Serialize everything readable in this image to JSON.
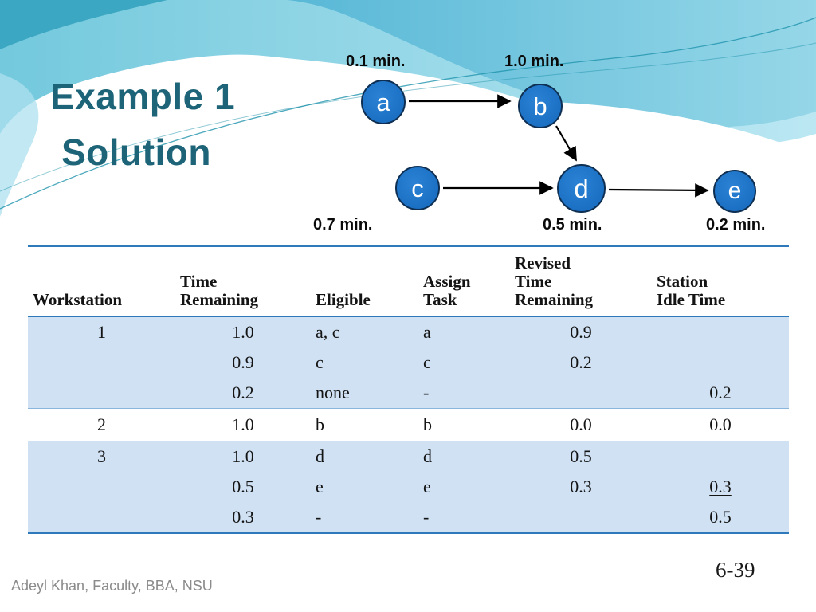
{
  "slide": {
    "title": {
      "line1": "Example 1",
      "line2": "Solution"
    },
    "footer": {
      "credit": "Adeyl Khan, Faculty, BBA, NSU",
      "page": "6-39"
    }
  },
  "diagram": {
    "nodes": [
      {
        "id": "a",
        "label": "a",
        "time": "0.1 min."
      },
      {
        "id": "b",
        "label": "b",
        "time": "1.0 min."
      },
      {
        "id": "c",
        "label": "c",
        "time": "0.7 min."
      },
      {
        "id": "d",
        "label": "d",
        "time": "0.5 min."
      },
      {
        "id": "e",
        "label": "e",
        "time": "0.2 min."
      }
    ],
    "edges": [
      {
        "from": "a",
        "to": "b"
      },
      {
        "from": "b",
        "to": "d"
      },
      {
        "from": "c",
        "to": "d"
      },
      {
        "from": "d",
        "to": "e"
      }
    ]
  },
  "table": {
    "headers": [
      "Workstation",
      "Time\nRemaining",
      "Eligible",
      "Assign\nTask",
      "Revised\nTime\nRemaining",
      "Station\nIdle Time"
    ],
    "groups": [
      {
        "shaded": true,
        "rows": [
          {
            "cells": [
              "1",
              "1.0",
              "a, c",
              "a",
              "0.9",
              ""
            ]
          },
          {
            "cells": [
              "",
              "0.9",
              "c",
              "c",
              "0.2",
              ""
            ]
          },
          {
            "cells": [
              "",
              "0.2",
              "none",
              "-",
              "",
              "0.2"
            ]
          }
        ]
      },
      {
        "shaded": false,
        "rows": [
          {
            "cells": [
              "2",
              "1.0",
              "b",
              "b",
              "0.0",
              "0.0"
            ]
          }
        ]
      },
      {
        "shaded": true,
        "rows": [
          {
            "cells": [
              "3",
              "1.0",
              "d",
              "d",
              "0.5",
              ""
            ]
          },
          {
            "cells": [
              "",
              "0.5",
              "e",
              "e",
              "0.3",
              "0.3"
            ],
            "underline": [
              5
            ]
          },
          {
            "cells": [
              "",
              "0.3",
              "-",
              "-",
              "",
              "0.5"
            ]
          }
        ]
      }
    ]
  },
  "colors": {
    "title": "#1d6478",
    "node_fill": "#1b70c4",
    "node_border": "#0e2f52",
    "band": "#cfe1f3",
    "rule": "#2e79ba",
    "rule_light": "#8ab6de",
    "footer": "#8b8b8b"
  }
}
